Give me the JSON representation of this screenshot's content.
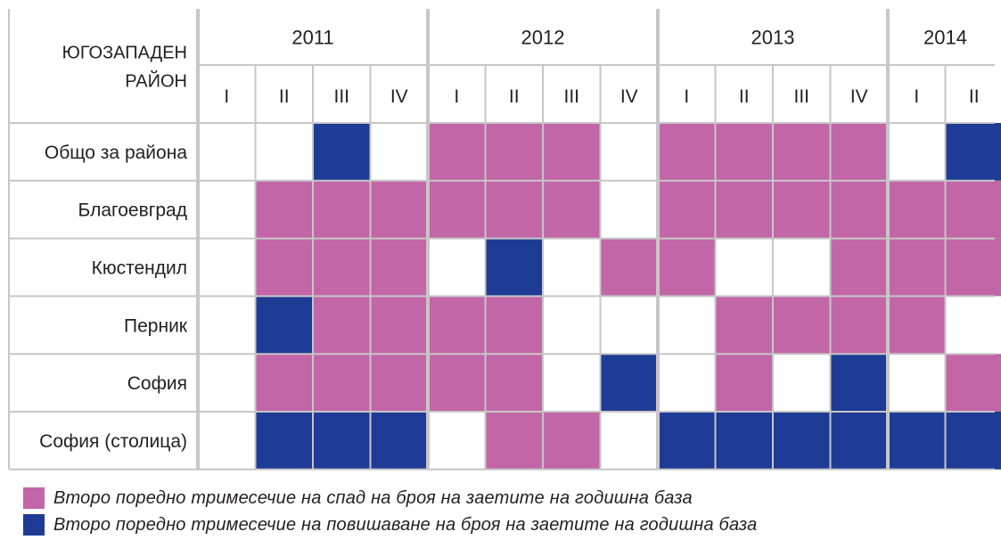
{
  "chart_data": {
    "type": "heatmap",
    "corner_label": [
      "ЮГОЗАПАДЕН",
      "РАЙОН"
    ],
    "years": [
      {
        "label": "2011",
        "quarters": 4
      },
      {
        "label": "2012",
        "quarters": 4
      },
      {
        "label": "2013",
        "quarters": 4
      },
      {
        "label": "2014",
        "quarters": 2
      }
    ],
    "quarters": [
      "I",
      "II",
      "III",
      "IV",
      "I",
      "II",
      "III",
      "IV",
      "I",
      "II",
      "III",
      "IV",
      "I",
      "II"
    ],
    "rows": [
      {
        "label": "Общо за района",
        "values": [
          0,
          0,
          2,
          0,
          1,
          1,
          1,
          0,
          1,
          1,
          1,
          1,
          0,
          2
        ]
      },
      {
        "label": "Благоевград",
        "values": [
          0,
          1,
          1,
          1,
          1,
          1,
          1,
          0,
          1,
          1,
          1,
          1,
          1,
          1
        ]
      },
      {
        "label": "Кюстендил",
        "values": [
          0,
          1,
          1,
          1,
          0,
          2,
          0,
          1,
          1,
          0,
          0,
          1,
          1,
          1
        ]
      },
      {
        "label": "Перник",
        "values": [
          0,
          2,
          1,
          1,
          1,
          1,
          0,
          0,
          0,
          1,
          1,
          1,
          1,
          0
        ]
      },
      {
        "label": "София",
        "values": [
          0,
          1,
          1,
          1,
          1,
          1,
          0,
          2,
          0,
          1,
          0,
          2,
          0,
          1
        ]
      },
      {
        "label": "София (столица)",
        "values": [
          0,
          2,
          2,
          2,
          0,
          1,
          1,
          0,
          2,
          2,
          2,
          2,
          2,
          2
        ]
      }
    ],
    "colors": {
      "0": "#ffffff",
      "1": "#c266a8",
      "2": "#1e3c96"
    },
    "legend": [
      {
        "value": 1,
        "color": "#c266a8",
        "label": "Второ поредно тримесечие на спад на броя на заетите на годишна база"
      },
      {
        "value": 2,
        "color": "#1e3c96",
        "label": "Второ поредно тримесечие на повишаване на броя на заетите на годишна база"
      }
    ]
  }
}
